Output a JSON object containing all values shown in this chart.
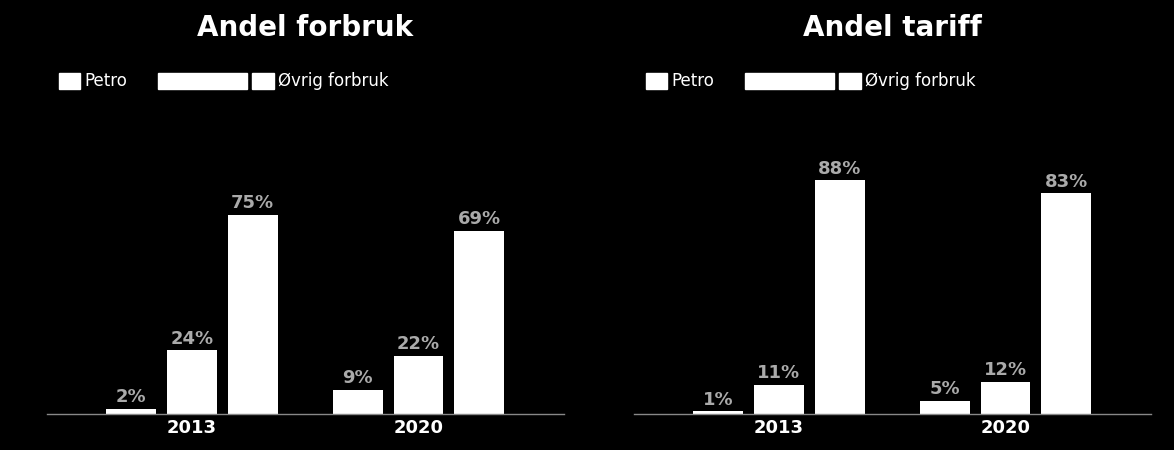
{
  "chart1": {
    "title": "Andel forbruk",
    "categories": [
      "2013",
      "2020"
    ],
    "petro": [
      2,
      9
    ],
    "middle": [
      24,
      22
    ],
    "ovrig": [
      75,
      69
    ],
    "petro_labels": [
      "2%",
      "9%"
    ],
    "middle_labels": [
      "24%",
      "22%"
    ],
    "ovrig_labels": [
      "75%",
      "69%"
    ]
  },
  "chart2": {
    "title": "Andel tariff",
    "categories": [
      "2013",
      "2020"
    ],
    "petro": [
      1,
      5
    ],
    "middle": [
      11,
      12
    ],
    "ovrig": [
      88,
      83
    ],
    "petro_labels": [
      "1%",
      "5%"
    ],
    "middle_labels": [
      "11%",
      "12%"
    ],
    "ovrig_labels": [
      "88%",
      "83%"
    ]
  },
  "legend_labels": [
    "Petro",
    "Øvrig forbruk"
  ],
  "bar_color": "#ffffff",
  "bg_color": "#000000",
  "text_color": "#ffffff",
  "label_color": "#aaaaaa",
  "title_fontsize": 20,
  "label_fontsize": 13,
  "tick_fontsize": 13,
  "legend_fontsize": 12,
  "bar_width": 0.55
}
